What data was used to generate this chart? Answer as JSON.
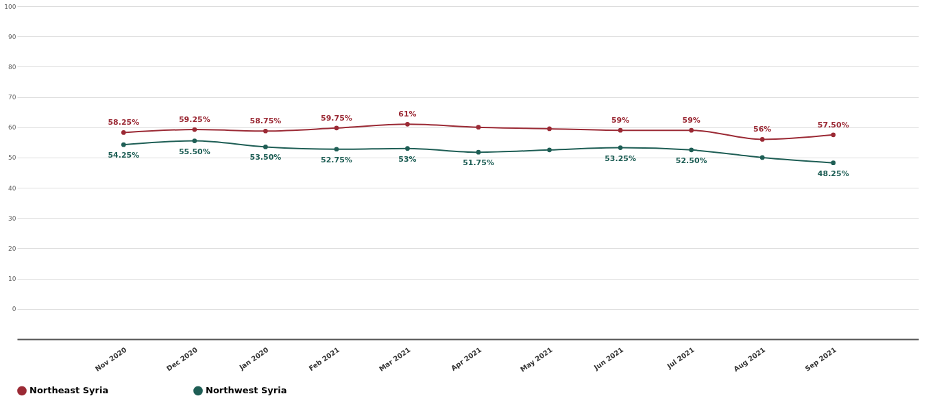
{
  "chart_data": {
    "type": "line",
    "categories": [
      "Nov 2020",
      "Dec 2020",
      "Jan 2020",
      "Feb 2021",
      "Mar 2021",
      "Apr 2021",
      "May 2021",
      "Jun 2021",
      "Jul 2021",
      "Aug 2021",
      "Sep 2021"
    ],
    "series": [
      {
        "name": "Northeast Syria",
        "color": "#9b2a35",
        "values": [
          58.25,
          59.25,
          58.75,
          59.75,
          61,
          60,
          59.5,
          59,
          59,
          56,
          57.5
        ],
        "value_labels": [
          "58.25%",
          "59.25%",
          "58.75%",
          "59.75%",
          "61%",
          null,
          null,
          "59%",
          "59%",
          "56%",
          "57.50%"
        ]
      },
      {
        "name": "Northwest Syria",
        "color": "#1e5e55",
        "values": [
          54.25,
          55.5,
          53.5,
          52.75,
          53,
          51.75,
          52.5,
          53.25,
          52.5,
          50,
          48.25
        ],
        "value_labels": [
          "54.25%",
          "55.50%",
          "53.50%",
          "52.75%",
          "53%",
          "51.75%",
          null,
          "53.25%",
          "52.50%",
          null,
          "48.25%"
        ]
      }
    ],
    "ylim": [
      -10,
      100
    ],
    "yticks": [
      {
        "value": -10,
        "label": null
      },
      0,
      10,
      20,
      30,
      40,
      50,
      60,
      70,
      80,
      90,
      100
    ],
    "grid": "y",
    "legend": "bottom",
    "marker": "circle",
    "line_style": "solid"
  }
}
